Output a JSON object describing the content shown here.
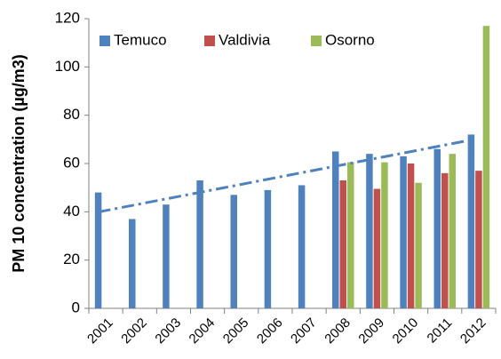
{
  "chart_data": {
    "type": "bar",
    "y_label": "PM 10 concentration (µg/m3)",
    "categories": [
      "2001",
      "2002",
      "2003",
      "2004",
      "2005",
      "2006",
      "2007",
      "2008",
      "2009",
      "2010",
      "2011",
      "2012"
    ],
    "series": [
      {
        "name": "Temuco",
        "color": "#4f81bd",
        "values": [
          48,
          37,
          43,
          53,
          47,
          49,
          51,
          65,
          64,
          63,
          66,
          72
        ],
        "trendline": "linear"
      },
      {
        "name": "Valdivia",
        "color": "#c0504d",
        "values": [
          null,
          null,
          null,
          null,
          null,
          null,
          null,
          53,
          49.5,
          60,
          56,
          57
        ]
      },
      {
        "name": "Osorno",
        "color": "#9bbb59",
        "values": [
          null,
          null,
          null,
          null,
          null,
          null,
          null,
          60.5,
          60.5,
          52,
          64,
          117
        ]
      }
    ],
    "ylim": [
      0,
      120
    ],
    "yticks": [
      0,
      20,
      40,
      60,
      80,
      100,
      120
    ],
    "grid": false,
    "legend": "top-left"
  }
}
